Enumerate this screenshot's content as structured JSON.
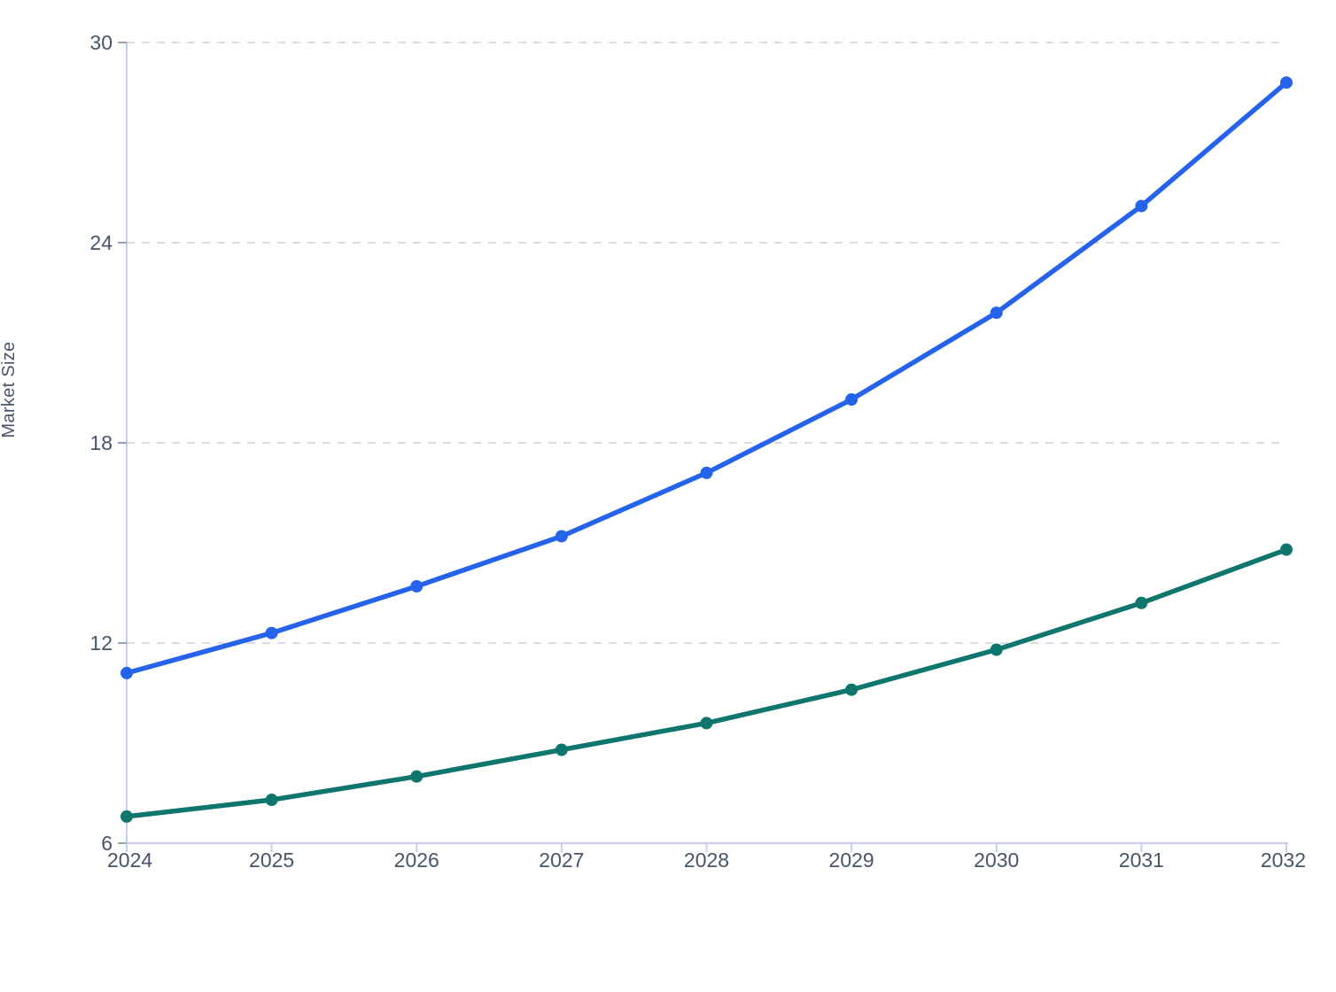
{
  "chart_data": {
    "type": "line",
    "x": [
      2024,
      2025,
      2026,
      2027,
      2028,
      2029,
      2030,
      2031,
      2032
    ],
    "xlabel": "",
    "ylabel": "Market Size",
    "ylim": [
      6,
      30
    ],
    "yticks": [
      6,
      12,
      18,
      24,
      30
    ],
    "grid": "dashed horizontal gridlines at 12, 18, 24, 30",
    "legend_position": "none",
    "title": "",
    "series": [
      {
        "id": "blue",
        "color": "#2563eb",
        "values": [
          11.1,
          12.3,
          13.7,
          15.2,
          17.1,
          19.3,
          21.9,
          25.1,
          28.8
        ]
      },
      {
        "id": "green",
        "color": "#0f766e",
        "values": [
          6.8,
          7.3,
          8.0,
          8.8,
          9.6,
          10.6,
          11.8,
          13.2,
          14.8
        ]
      }
    ],
    "colors": {
      "axis_line": "#c5cdf0",
      "tick_mark": "#94a3b8",
      "gridline": "#d9dce2",
      "label_text": "#475569",
      "background": "#ffffff"
    }
  }
}
